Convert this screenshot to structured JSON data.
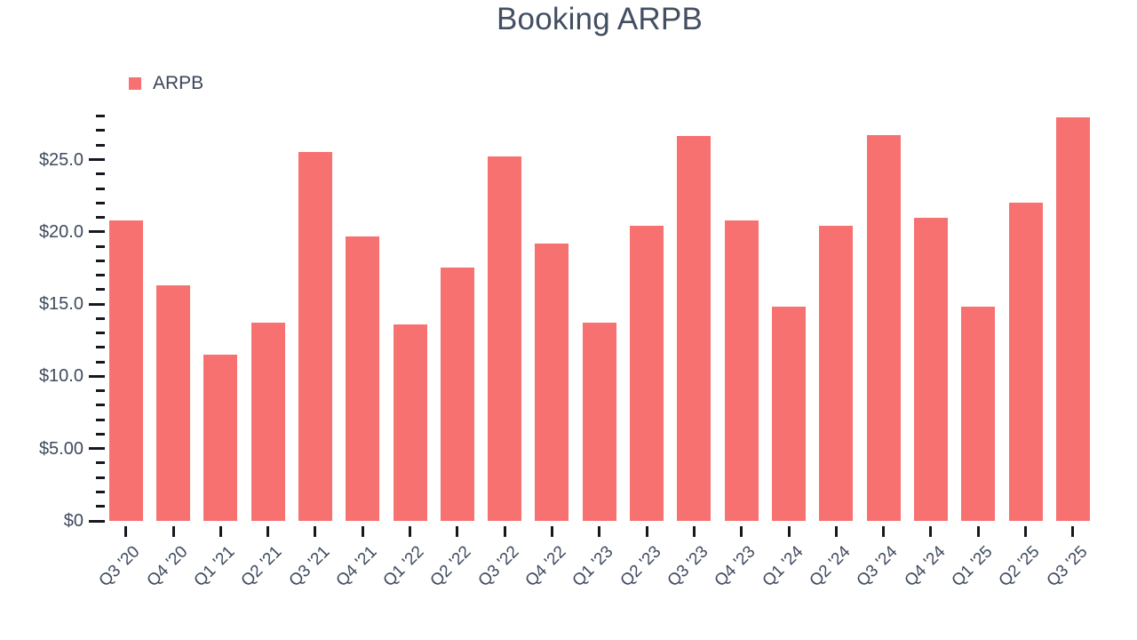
{
  "title": "Booking ARPB",
  "legend": {
    "items": [
      {
        "label": "ARPB",
        "color": "#f87171"
      }
    ]
  },
  "chart_data": {
    "type": "bar",
    "title": "Booking ARPB",
    "categories": [
      "Q3 '20",
      "Q4 '20",
      "Q1 '21",
      "Q2 '21",
      "Q3 '21",
      "Q4 '21",
      "Q1 '22",
      "Q2 '22",
      "Q3 '22",
      "Q4 '22",
      "Q1 '23",
      "Q2 '23",
      "Q3 '23",
      "Q4 '23",
      "Q1 '24",
      "Q2 '24",
      "Q3 '24",
      "Q4 '24",
      "Q1 '25",
      "Q2 '25",
      "Q3 '25"
    ],
    "series": [
      {
        "name": "ARPB",
        "color": "#f87171",
        "values": [
          20.8,
          16.3,
          11.5,
          13.7,
          25.5,
          19.7,
          13.6,
          17.5,
          25.2,
          19.2,
          13.7,
          20.4,
          26.6,
          20.8,
          14.8,
          20.4,
          26.7,
          21.0,
          14.8,
          22.0,
          27.9
        ]
      }
    ],
    "xlabel": "",
    "ylabel": "",
    "ylim": [
      0,
      28
    ],
    "y_ticks": {
      "minor_step": 1,
      "major_step": 5,
      "labels": {
        "0": "$0",
        "5": "$5.00",
        "10": "$10.0",
        "15": "$15.0",
        "20": "$20.0",
        "25": "$25.0"
      }
    },
    "legend_position": "top-left",
    "grid": false,
    "x_label_rotation_deg": -45,
    "colors": {
      "bar": "#f87171",
      "text": "#3e4a5e",
      "tick_mark": "#16181f",
      "title": "#424e61",
      "background": "#ffffff"
    }
  }
}
